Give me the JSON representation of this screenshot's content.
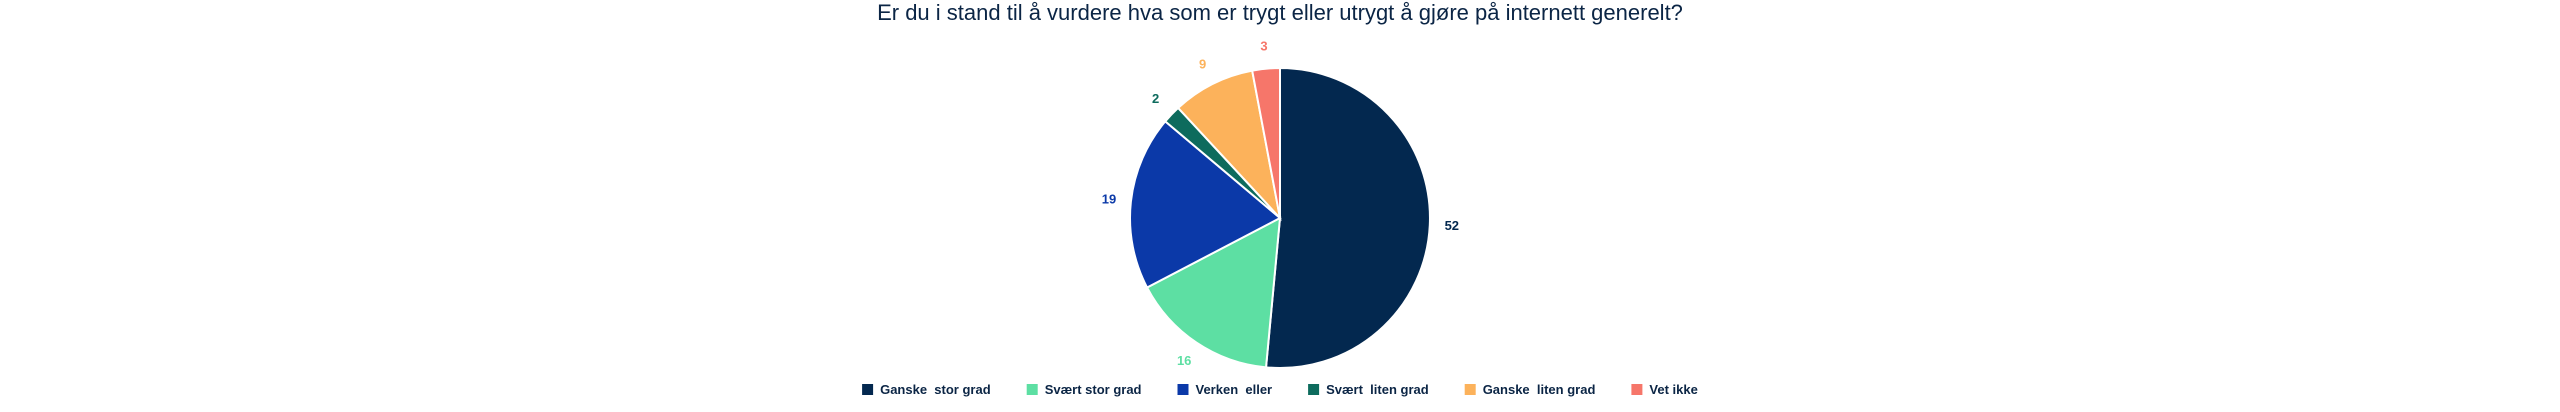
{
  "chart_data": {
    "type": "pie",
    "title": "Er du i stand til å vurdere hva som er trygt eller utrygt å gjøre på internett generelt?",
    "categories": [
      "Ganske  stor grad",
      "Svært stor grad",
      "Verken  eller",
      "Svært  liten grad",
      "Ganske  liten grad",
      "Vet ikke"
    ],
    "values": [
      52,
      16,
      19,
      2,
      9,
      3
    ],
    "value_labels": [
      "52",
      "16",
      "19",
      "2",
      "9",
      "3"
    ],
    "colors": [
      "#03284f",
      "#5ddfa3",
      "#0b39a8",
      "#0d6b5d",
      "#fcb25b",
      "#f6766a"
    ],
    "label_colors": [
      "#03284f",
      "#5ddfa3",
      "#0b39a8",
      "#0d6b5d",
      "#fcb25b",
      "#f6766a"
    ],
    "legend_position": "bottom"
  }
}
